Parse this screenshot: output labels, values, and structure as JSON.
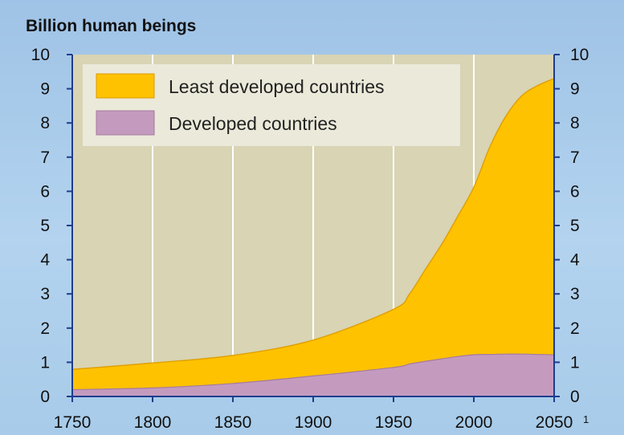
{
  "chart_data": {
    "type": "area",
    "title": "Billion human beings",
    "stacked": true,
    "x": [
      1750,
      1800,
      1850,
      1900,
      1950,
      1960,
      1970,
      1980,
      1990,
      2000,
      2010,
      2020,
      2030,
      2040,
      2050
    ],
    "series": [
      {
        "name": "Developed countries",
        "color": "#c49bbf",
        "values": [
          0.2,
          0.25,
          0.38,
          0.6,
          0.85,
          0.95,
          1.03,
          1.1,
          1.17,
          1.22,
          1.23,
          1.24,
          1.24,
          1.23,
          1.22
        ]
      },
      {
        "name": "Least developed countries",
        "color": "#ffc200",
        "values": [
          0.59,
          0.73,
          0.82,
          1.05,
          1.7,
          2.05,
          2.7,
          3.35,
          4.1,
          4.9,
          6.07,
          6.96,
          7.56,
          7.87,
          8.08
        ]
      }
    ],
    "total_line": [
      0.79,
      0.98,
      1.2,
      1.65,
      2.55,
      3.0,
      3.73,
      4.45,
      5.27,
      6.12,
      7.3,
      8.2,
      8.8,
      9.1,
      9.3
    ],
    "xlim": [
      1750,
      2050
    ],
    "ylim": [
      0,
      10
    ],
    "x_ticks": [
      "1750",
      "1800",
      "1850",
      "1900",
      "1950",
      "2000",
      "2050"
    ],
    "y_ticks": [
      "0",
      "1",
      "2",
      "3",
      "4",
      "5",
      "6",
      "7",
      "8",
      "9",
      "10"
    ],
    "x_tick_footnote": "1",
    "legend_placement": "top-left",
    "grid": "vertical",
    "plot_bg": "#d8d4b4",
    "legend_bg": "#ebe9d9",
    "grid_color": "#ffffff",
    "axis_color": "#1f3d8c"
  }
}
